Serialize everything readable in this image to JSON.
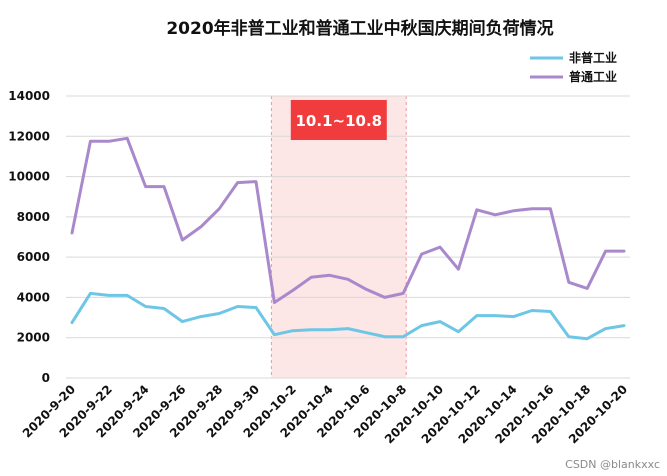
{
  "chart_data": {
    "type": "line",
    "title": "2020年非普工业和普通工业中秋国庆期间负荷情况",
    "xlabel": "",
    "ylabel": "",
    "ylim": [
      0,
      14000
    ],
    "yticks": [
      0,
      2000,
      4000,
      6000,
      8000,
      10000,
      12000,
      14000
    ],
    "grid": "horizontal",
    "legend_position": "top-right",
    "x": [
      "2020-9-20",
      "2020-9-21",
      "2020-9-22",
      "2020-9-23",
      "2020-9-24",
      "2020-9-25",
      "2020-9-26",
      "2020-9-27",
      "2020-9-28",
      "2020-9-29",
      "2020-9-30",
      "2020-10-1",
      "2020-10-2",
      "2020-10-3",
      "2020-10-4",
      "2020-10-5",
      "2020-10-6",
      "2020-10-7",
      "2020-10-8",
      "2020-10-9",
      "2020-10-10",
      "2020-10-11",
      "2020-10-12",
      "2020-10-13",
      "2020-10-14",
      "2020-10-15",
      "2020-10-16",
      "2020-10-17",
      "2020-10-18",
      "2020-10-19",
      "2020-10-20"
    ],
    "x_tick_labels": [
      "2020-9-20",
      "2020-9-22",
      "2020-9-24",
      "2020-9-26",
      "2020-9-28",
      "2020-9-30",
      "2020-10-2",
      "2020-10-4",
      "2020-10-6",
      "2020-10-8",
      "2020-10-10",
      "2020-10-12",
      "2020-10-14",
      "2020-10-16",
      "2020-10-18",
      "2020-10-20"
    ],
    "series": [
      {
        "name": "非普工业",
        "color": "#6ec6e6",
        "values": [
          2750,
          4200,
          4100,
          4100,
          3550,
          3450,
          2800,
          3050,
          3200,
          3550,
          3500,
          2150,
          2350,
          2400,
          2400,
          2450,
          2250,
          2050,
          2050,
          2600,
          2800,
          2300,
          3100,
          3100,
          3050,
          3350,
          3300,
          2050,
          1950,
          2450,
          2600
        ]
      },
      {
        "name": "普通工业",
        "color": "#a989cc",
        "values": [
          7200,
          11750,
          11750,
          11900,
          9500,
          9500,
          6850,
          7500,
          8400,
          9700,
          9750,
          3750,
          4350,
          5000,
          5100,
          4900,
          4400,
          4000,
          4200,
          6150,
          6500,
          5400,
          8350,
          8100,
          8300,
          8400,
          8400,
          4750,
          4450,
          6300,
          6300
        ]
      }
    ],
    "annotation": {
      "label": "10.1~10.8",
      "x_start": "2020-10-1",
      "x_end": "2020-10-8",
      "box_color": "#f03c3c",
      "shade_color": "#fde6e6"
    },
    "watermark": "CSDN @blankxxc"
  }
}
